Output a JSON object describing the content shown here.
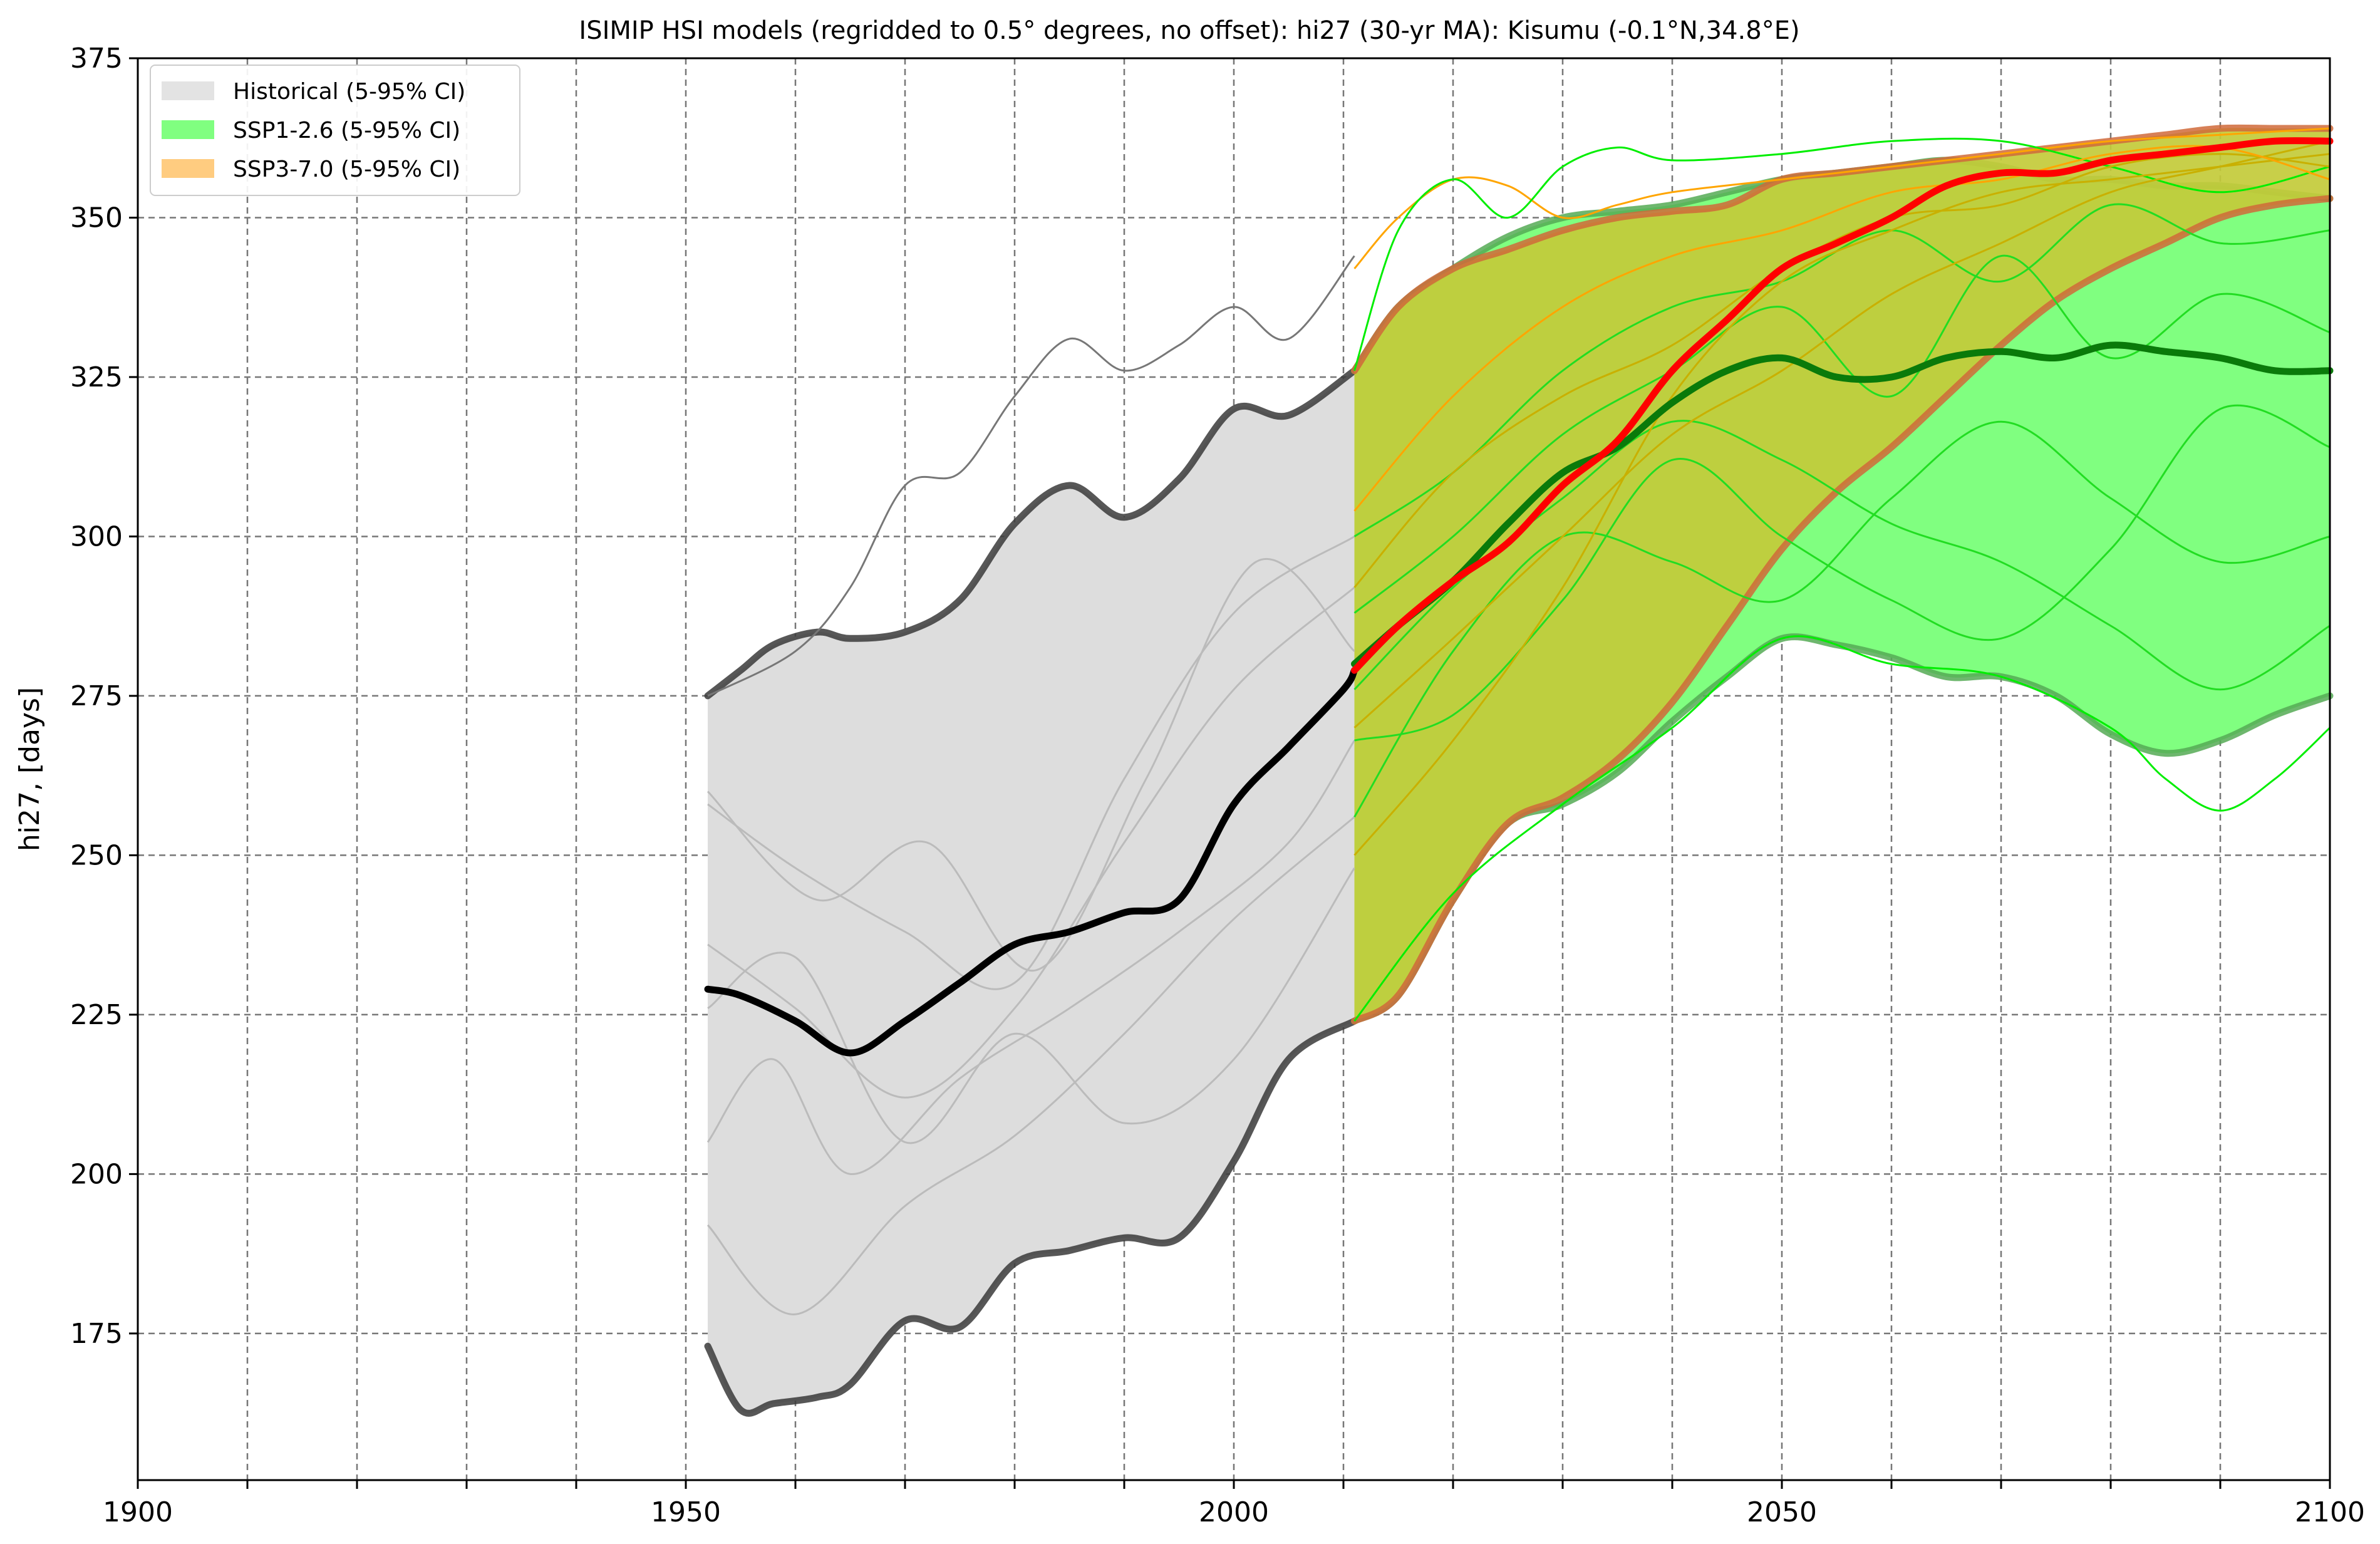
{
  "chart_data": {
    "type": "line",
    "title": "ISIMIP HSI models (regridded to 0.5° degrees, no offset): hi27 (30-yr MA): Kisumu (-0.1°N,34.8°E)",
    "xlabel": "",
    "ylabel": "hi27, [days]",
    "xlim": [
      1900,
      2100
    ],
    "ylim": [
      152,
      375
    ],
    "x_ticks": [
      1900,
      1950,
      2000,
      2050,
      2100
    ],
    "x_minor_ticks": [
      1910,
      1920,
      1930,
      1940,
      1960,
      1970,
      1980,
      1990,
      2010,
      2020,
      2030,
      2040,
      2060,
      2070,
      2080,
      2090
    ],
    "y_ticks": [
      175,
      200,
      225,
      250,
      275,
      300,
      325,
      350,
      375
    ],
    "grid": true,
    "legend_position": "top-left",
    "legend": [
      {
        "label": "Historical (5-95% CI)",
        "color": "#e3e3e3"
      },
      {
        "label": "SSP1-2.6 (5-95% CI)",
        "color": "#80ff80"
      },
      {
        "label": "SSP3-7.0 (5-95% CI)",
        "color": "#ffcc80"
      }
    ],
    "bands": [
      {
        "name": "Historical",
        "fill": "#dddddd",
        "edge": "#3a3a3a",
        "x": [
          1952,
          1955,
          1958,
          1962,
          1965,
          1970,
          1975,
          1980,
          1985,
          1990,
          1995,
          2000,
          2005,
          2011
        ],
        "upper": [
          275,
          279,
          283,
          285,
          284,
          285,
          290,
          302,
          308,
          303,
          309,
          320,
          319,
          326
        ],
        "lower": [
          173,
          163,
          164,
          165,
          167,
          177,
          176,
          186,
          188,
          190,
          190,
          202,
          218,
          224
        ]
      },
      {
        "name": "SSP1-2.6",
        "fill": "#80ff80",
        "edge": "#55aa55",
        "x": [
          2011,
          2015,
          2020,
          2025,
          2030,
          2035,
          2040,
          2045,
          2050,
          2055,
          2060,
          2065,
          2070,
          2075,
          2080,
          2085,
          2090,
          2095,
          2100
        ],
        "upper": [
          326,
          336,
          342,
          347,
          350,
          351,
          352,
          354,
          356,
          357,
          358,
          359,
          358,
          356,
          356,
          355,
          355,
          354,
          353
        ],
        "lower": [
          224,
          228,
          243,
          255,
          258,
          263,
          271,
          278,
          284,
          283,
          281,
          278,
          278,
          275,
          269,
          266,
          268,
          272,
          275
        ]
      },
      {
        "name": "SSP3-7.0",
        "fill": "#c3cb3a",
        "edge": "#d06a3a",
        "x": [
          2011,
          2015,
          2020,
          2025,
          2030,
          2035,
          2040,
          2045,
          2050,
          2055,
          2060,
          2065,
          2070,
          2075,
          2080,
          2085,
          2090,
          2095,
          2100
        ],
        "upper": [
          326,
          336,
          342,
          345,
          348,
          350,
          351,
          352,
          356,
          357,
          358,
          359,
          360,
          361,
          362,
          363,
          364,
          364,
          364
        ],
        "lower": [
          224,
          228,
          243,
          255,
          259,
          265,
          274,
          286,
          298,
          307,
          314,
          322,
          330,
          337,
          342,
          346,
          350,
          352,
          353
        ]
      }
    ],
    "median_lines": [
      {
        "name": "Historical median",
        "color": "#000000",
        "x": [
          1952,
          1955,
          1960,
          1965,
          1970,
          1975,
          1980,
          1985,
          1990,
          1995,
          2000,
          2005,
          2010,
          2011
        ],
        "y": [
          229,
          228,
          224,
          219,
          224,
          230,
          236,
          238,
          241,
          243,
          258,
          267,
          276,
          279
        ]
      },
      {
        "name": "SSP1-2.6 median",
        "color": "#0a7a0a",
        "x": [
          2011,
          2015,
          2020,
          2025,
          2030,
          2035,
          2040,
          2045,
          2050,
          2055,
          2060,
          2065,
          2070,
          2075,
          2080,
          2085,
          2090,
          2095,
          2100
        ],
        "y": [
          280,
          286,
          293,
          302,
          310,
          314,
          321,
          326,
          328,
          325,
          325,
          328,
          329,
          328,
          330,
          329,
          328,
          326,
          326
        ]
      },
      {
        "name": "SSP3-7.0 median",
        "color": "#ff0000",
        "x": [
          2011,
          2015,
          2020,
          2025,
          2030,
          2035,
          2040,
          2045,
          2050,
          2055,
          2060,
          2065,
          2070,
          2075,
          2080,
          2085,
          2090,
          2095,
          2100
        ],
        "y": [
          279,
          286,
          293,
          299,
          308,
          315,
          326,
          334,
          342,
          346,
          350,
          355,
          357,
          357,
          359,
          360,
          361,
          362,
          362
        ]
      }
    ],
    "member_lines": [
      {
        "name": "Historical member (max)",
        "color": "#777777",
        "x": [
          1952,
          1960,
          1965,
          1970,
          1975,
          1980,
          1985,
          1990,
          1995,
          2000,
          2005,
          2011
        ],
        "y": [
          275,
          282,
          292,
          308,
          310,
          322,
          331,
          326,
          330,
          336,
          331,
          344
        ]
      },
      {
        "name": "Historical member",
        "color": "#bbbbbb",
        "x": [
          1952,
          1960,
          1970,
          1980,
          1990,
          2000,
          2011
        ],
        "y": [
          258,
          248,
          238,
          230,
          262,
          288,
          300
        ]
      },
      {
        "name": "Historical member",
        "color": "#bbbbbb",
        "x": [
          1952,
          1960,
          1970,
          1980,
          1990,
          2000,
          2011
        ],
        "y": [
          236,
          226,
          212,
          226,
          252,
          276,
          292
        ]
      },
      {
        "name": "Historical member",
        "color": "#bbbbbb",
        "x": [
          1952,
          1958,
          1965,
          1975,
          1985,
          1995,
          2005,
          2011
        ],
        "y": [
          205,
          218,
          200,
          215,
          226,
          238,
          252,
          268
        ]
      },
      {
        "name": "Historical member",
        "color": "#bbbbbb",
        "x": [
          1952,
          1960,
          1970,
          1980,
          1990,
          2000,
          2011
        ],
        "y": [
          192,
          178,
          195,
          206,
          222,
          240,
          256
        ]
      },
      {
        "name": "Historical member",
        "color": "#bbbbbb",
        "x": [
          1952,
          1962,
          1972,
          1982,
          1992,
          2002,
          2011
        ],
        "y": [
          260,
          243,
          252,
          232,
          262,
          296,
          282
        ]
      },
      {
        "name": "Historical member",
        "color": "#bbbbbb",
        "x": [
          1952,
          1960,
          1970,
          1980,
          1990,
          2000,
          2011
        ],
        "y": [
          226,
          234,
          205,
          222,
          208,
          218,
          248
        ]
      },
      {
        "name": "SSP3-7.0 member (max)",
        "color": "#ffa500",
        "x": [
          2011,
          2015,
          2020,
          2025,
          2030,
          2035,
          2040,
          2050,
          2060,
          2070,
          2080,
          2090,
          2100
        ],
        "y": [
          342,
          350,
          356,
          355,
          350,
          352,
          354,
          356,
          358,
          360,
          362,
          363,
          364
        ]
      },
      {
        "name": "SSP1-2.6 member (max)",
        "color": "#00ee00",
        "x": [
          2011,
          2015,
          2020,
          2025,
          2030,
          2035,
          2040,
          2050,
          2060,
          2070,
          2080,
          2090,
          2100
        ],
        "y": [
          326,
          348,
          356,
          350,
          358,
          361,
          359,
          360,
          362,
          362,
          358,
          354,
          358
        ]
      },
      {
        "name": "SSP1-2.6 member (min)",
        "color": "#00ee00",
        "x": [
          2011,
          2020,
          2030,
          2040,
          2050,
          2060,
          2070,
          2080,
          2085,
          2090,
          2095,
          2100
        ],
        "y": [
          224,
          244,
          258,
          270,
          284,
          280,
          278,
          270,
          262,
          257,
          262,
          270
        ]
      },
      {
        "name": "SSP1-2.6 member",
        "color": "#22dd22",
        "x": [
          2011,
          2020,
          2030,
          2040,
          2050,
          2060,
          2070,
          2080,
          2090,
          2100
        ],
        "y": [
          256,
          282,
          300,
          296,
          290,
          306,
          318,
          306,
          296,
          300
        ]
      },
      {
        "name": "SSP1-2.6 member",
        "color": "#22dd22",
        "x": [
          2011,
          2020,
          2030,
          2040,
          2050,
          2060,
          2070,
          2080,
          2090,
          2100
        ],
        "y": [
          268,
          272,
          290,
          312,
          300,
          290,
          284,
          298,
          320,
          314
        ]
      },
      {
        "name": "SSP1-2.6 member",
        "color": "#22dd22",
        "x": [
          2011,
          2020,
          2030,
          2040,
          2050,
          2060,
          2070,
          2080,
          2090,
          2100
        ],
        "y": [
          288,
          300,
          316,
          326,
          336,
          322,
          344,
          328,
          338,
          332
        ]
      },
      {
        "name": "SSP1-2.6 member",
        "color": "#22dd22",
        "x": [
          2011,
          2020,
          2030,
          2040,
          2050,
          2060,
          2070,
          2080,
          2090,
          2100
        ],
        "y": [
          300,
          310,
          326,
          336,
          340,
          348,
          340,
          352,
          346,
          348
        ]
      },
      {
        "name": "SSP1-2.6 member",
        "color": "#22dd22",
        "x": [
          2011,
          2020,
          2030,
          2040,
          2050,
          2060,
          2070,
          2080,
          2090,
          2100
        ],
        "y": [
          276,
          292,
          306,
          318,
          312,
          302,
          296,
          286,
          276,
          286
        ]
      },
      {
        "name": "SSP3-7.0 member",
        "color": "#c9b000",
        "x": [
          2011,
          2020,
          2030,
          2040,
          2050,
          2060,
          2070,
          2080,
          2090,
          2100
        ],
        "y": [
          250,
          268,
          292,
          322,
          340,
          348,
          354,
          356,
          358,
          360
        ]
      },
      {
        "name": "SSP3-7.0 member",
        "color": "#c9b000",
        "x": [
          2011,
          2020,
          2030,
          2040,
          2050,
          2060,
          2070,
          2080,
          2090,
          2100
        ],
        "y": [
          292,
          310,
          322,
          330,
          342,
          350,
          352,
          358,
          360,
          358
        ]
      },
      {
        "name": "SSP3-7.0 member",
        "color": "#c9b000",
        "x": [
          2011,
          2020,
          2030,
          2040,
          2050,
          2060,
          2070,
          2080,
          2090,
          2100
        ],
        "y": [
          270,
          284,
          300,
          316,
          326,
          338,
          346,
          354,
          358,
          362
        ]
      },
      {
        "name": "SSP3-7.0 member",
        "color": "#ffa500",
        "x": [
          2011,
          2020,
          2030,
          2040,
          2050,
          2060,
          2070,
          2080,
          2090,
          2100
        ],
        "y": [
          304,
          322,
          336,
          344,
          348,
          354,
          356,
          360,
          361,
          356
        ]
      }
    ]
  }
}
